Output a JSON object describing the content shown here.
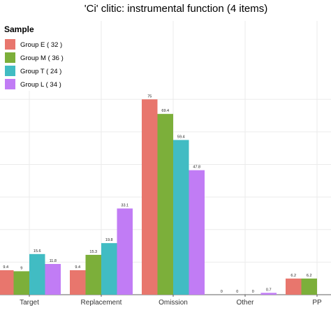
{
  "chart_data": {
    "type": "bar",
    "title": "'Ci' clitic: instrumental function (4 items)",
    "legend_title": "Sample",
    "legend_position": "top-left",
    "grid": true,
    "categories": [
      "Target",
      "Replacement",
      "Omission",
      "Other",
      "PP"
    ],
    "series": [
      {
        "name": "Group E ( 32 )",
        "color": "#e8766d",
        "values": [
          9.4,
          9.4,
          75,
          0,
          6.2
        ]
      },
      {
        "name": "Group M ( 36 )",
        "color": "#7caf3a",
        "values": [
          9,
          15.3,
          69.4,
          0,
          6.2
        ]
      },
      {
        "name": "Group T ( 24 )",
        "color": "#41bcc3",
        "values": [
          15.6,
          19.8,
          59.4,
          0,
          null
        ]
      },
      {
        "name": "Group L ( 34 )",
        "color": "#c17cf5",
        "values": [
          11.8,
          33.1,
          47.8,
          0.7,
          null
        ]
      }
    ],
    "data_labels": [
      [
        "9.4",
        "9",
        "15.6",
        "11.8"
      ],
      [
        "9.4",
        "15.3",
        "19.8",
        "33.1"
      ],
      [
        "75",
        "69.4",
        "59.4",
        "47.8"
      ],
      [
        "0",
        "0",
        "0",
        "0.7"
      ],
      [
        "6.2",
        "6.2",
        "",
        ""
      ]
    ],
    "ylim": [
      0,
      80
    ],
    "xlabel": "",
    "ylabel": ""
  }
}
